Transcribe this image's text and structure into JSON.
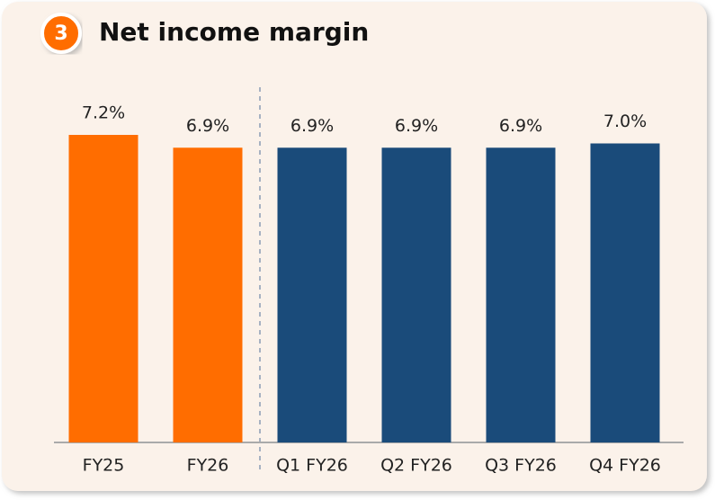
{
  "badge": "3",
  "chart_data": {
    "type": "bar",
    "title": "Net income margin",
    "categories": [
      "FY25",
      "FY26",
      "Q1 FY26",
      "Q2 FY26",
      "Q3 FY26",
      "Q4 FY26"
    ],
    "values": [
      7.2,
      6.9,
      6.9,
      6.9,
      6.9,
      7.0
    ],
    "value_labels": [
      "7.2%",
      "6.9%",
      "6.9%",
      "6.9%",
      "6.9%",
      "7.0%"
    ],
    "colors": [
      "#ff6d00",
      "#ff6d00",
      "#1a4b7a",
      "#1a4b7a",
      "#1a4b7a",
      "#1a4b7a"
    ],
    "ylim": [
      0,
      8
    ]
  }
}
